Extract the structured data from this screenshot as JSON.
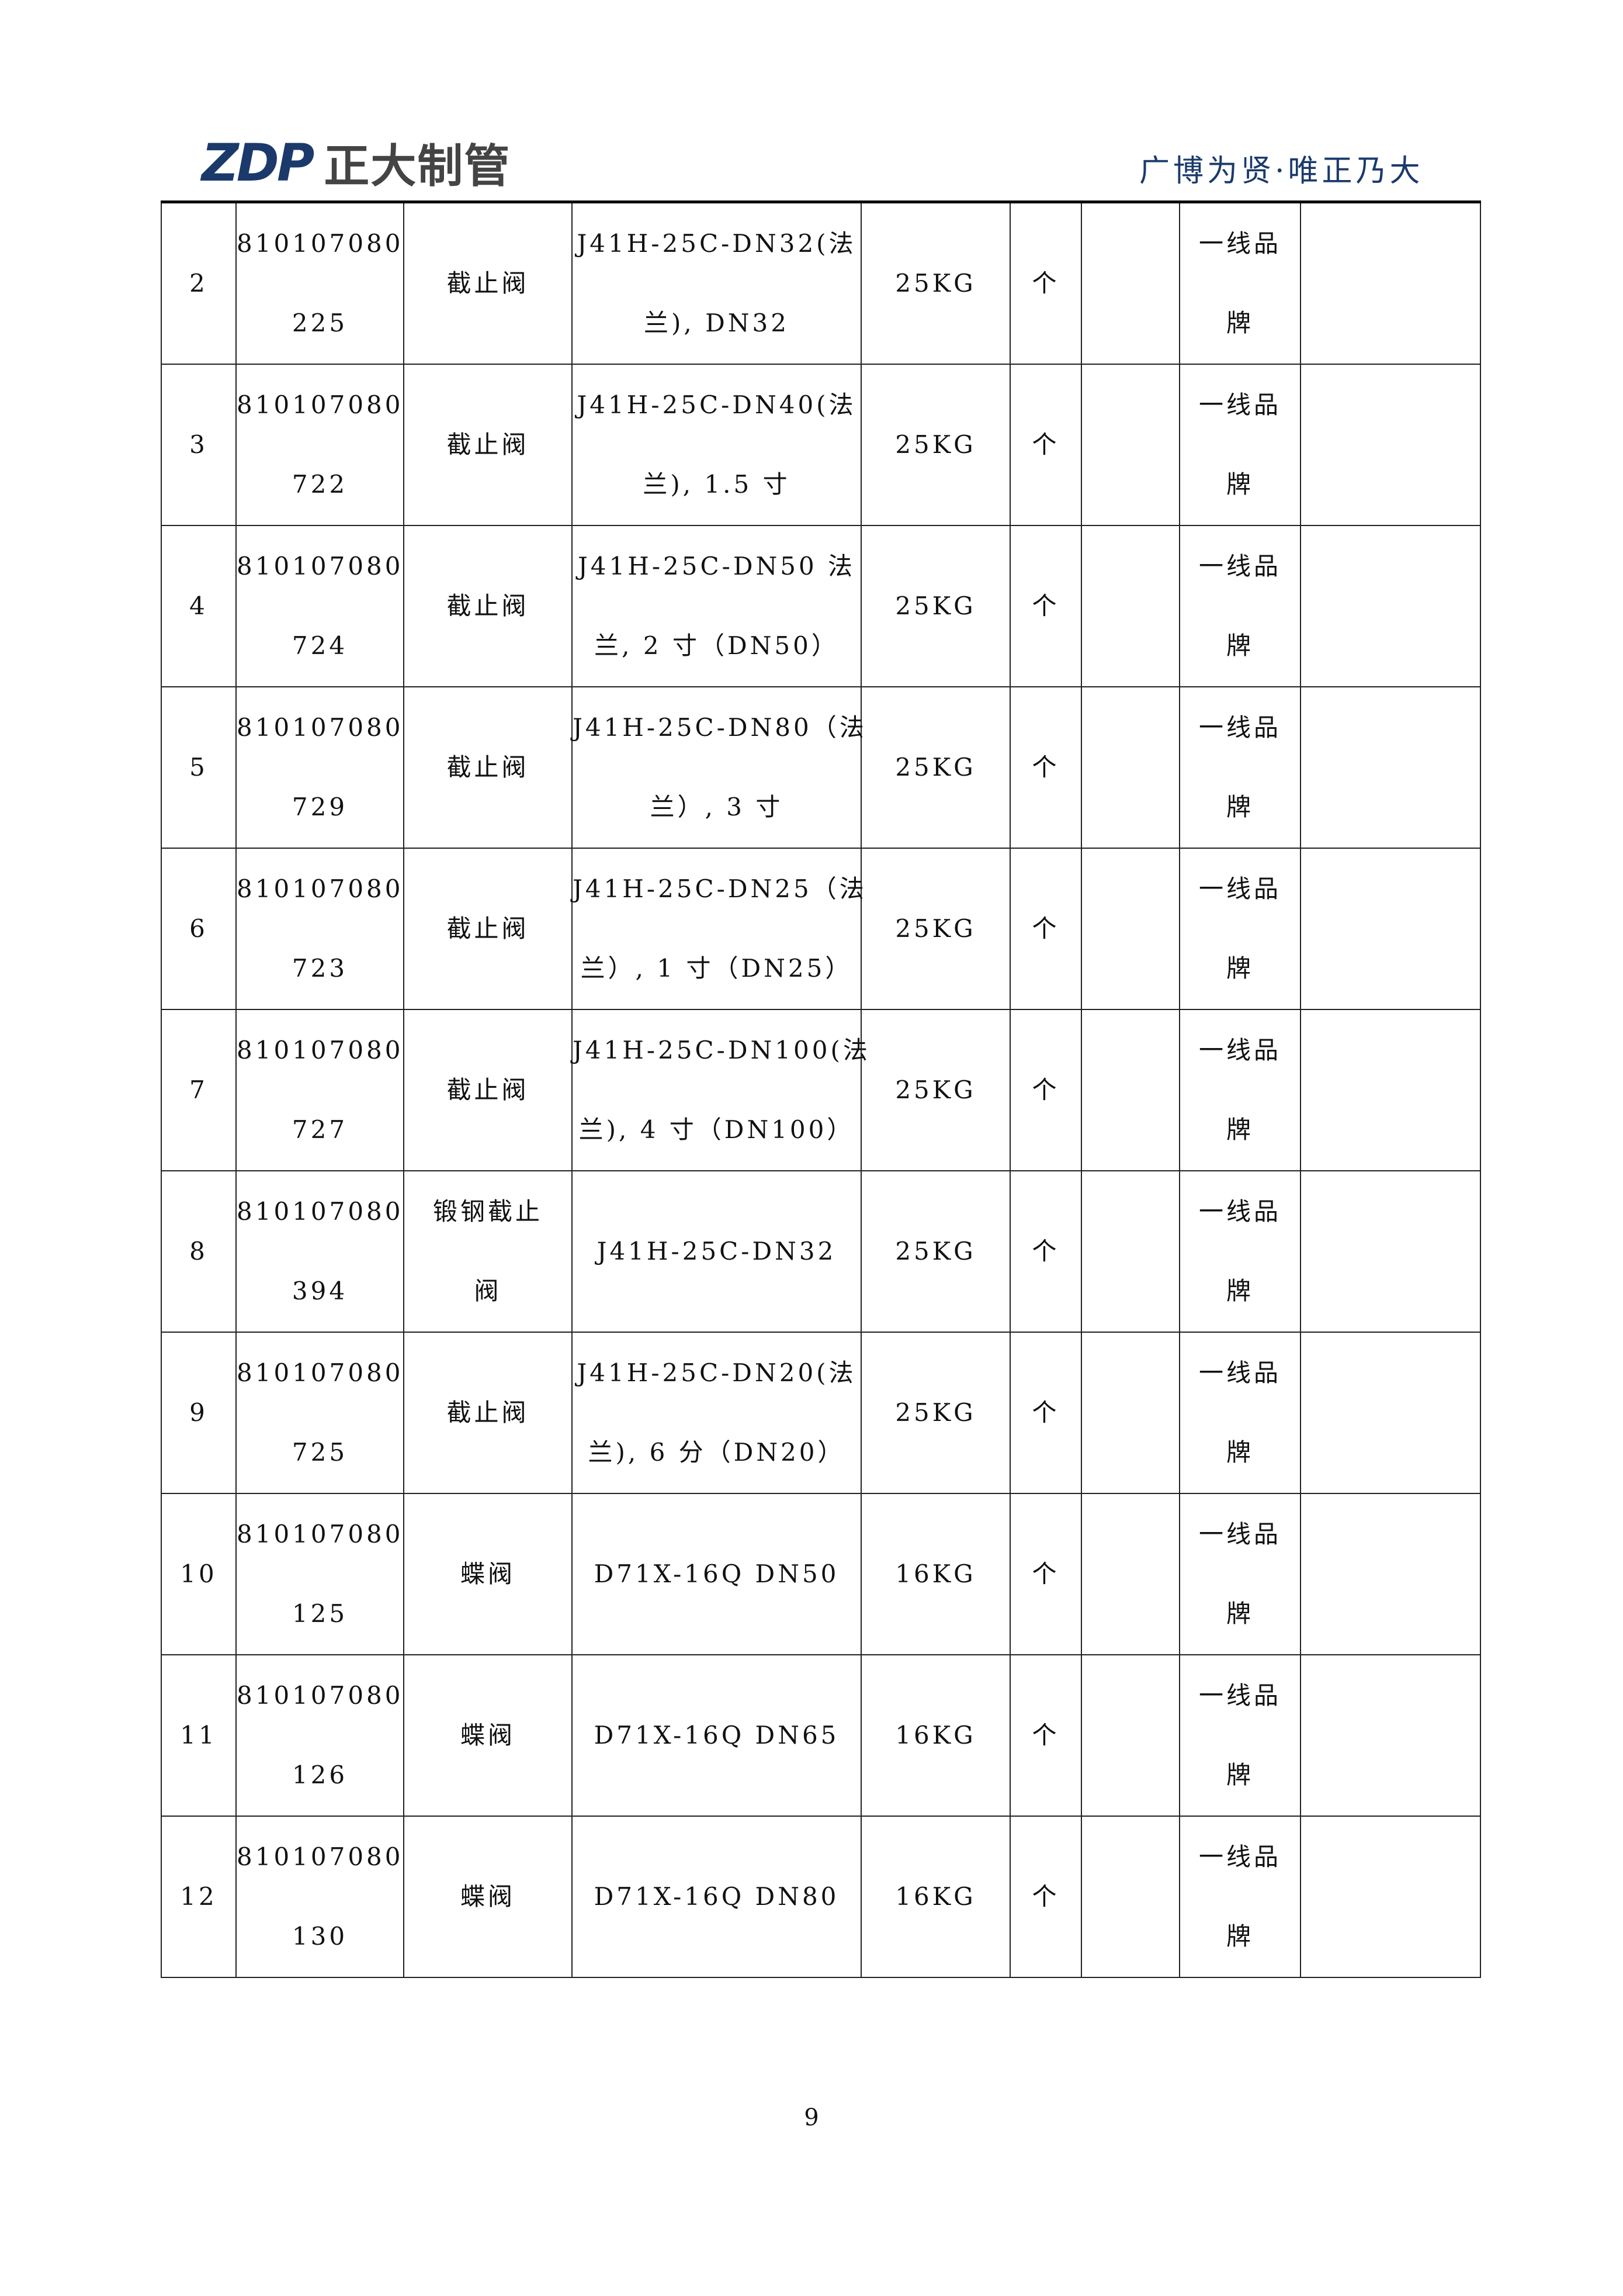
{
  "header": {
    "logo_mark": "ZDP",
    "logo_text": "正大制管",
    "slogan": "广博为贤·唯正乃大",
    "brand_color": "#1b3a6b"
  },
  "rows": [
    {
      "no": "2",
      "code": [
        "810107080",
        "225"
      ],
      "name": [
        "截止阀"
      ],
      "spec": [
        "J41H-25C-DN32(法",
        "兰), DN32"
      ],
      "pressure": "25KG",
      "unit": "个",
      "qty": "",
      "brand": [
        "一线品",
        "牌"
      ],
      "note": ""
    },
    {
      "no": "3",
      "code": [
        "810107080",
        "722"
      ],
      "name": [
        "截止阀"
      ],
      "spec": [
        "J41H-25C-DN40(法",
        "兰), 1.5 寸"
      ],
      "pressure": "25KG",
      "unit": "个",
      "qty": "",
      "brand": [
        "一线品",
        "牌"
      ],
      "note": ""
    },
    {
      "no": "4",
      "code": [
        "810107080",
        "724"
      ],
      "name": [
        "截止阀"
      ],
      "spec": [
        "J41H-25C-DN50 法",
        "兰, 2 寸（DN50）"
      ],
      "pressure": "25KG",
      "unit": "个",
      "qty": "",
      "brand": [
        "一线品",
        "牌"
      ],
      "note": ""
    },
    {
      "no": "5",
      "code": [
        "810107080",
        "729"
      ],
      "name": [
        "截止阀"
      ],
      "spec": [
        "J41H-25C-DN80（法",
        "兰）, 3 寸"
      ],
      "pressure": "25KG",
      "unit": "个",
      "qty": "",
      "brand": [
        "一线品",
        "牌"
      ],
      "note": ""
    },
    {
      "no": "6",
      "code": [
        "810107080",
        "723"
      ],
      "name": [
        "截止阀"
      ],
      "spec": [
        "J41H-25C-DN25（法",
        "兰）, 1 寸（DN25）"
      ],
      "pressure": "25KG",
      "unit": "个",
      "qty": "",
      "brand": [
        "一线品",
        "牌"
      ],
      "note": ""
    },
    {
      "no": "7",
      "code": [
        "810107080",
        "727"
      ],
      "name": [
        "截止阀"
      ],
      "spec": [
        "J41H-25C-DN100(法",
        "兰), 4 寸（DN100）"
      ],
      "pressure": "25KG",
      "unit": "个",
      "qty": "",
      "brand": [
        "一线品",
        "牌"
      ],
      "note": ""
    },
    {
      "no": "8",
      "code": [
        "810107080",
        "394"
      ],
      "name": [
        "锻钢截止",
        "阀"
      ],
      "spec": [
        "J41H-25C-DN32"
      ],
      "pressure": "25KG",
      "unit": "个",
      "qty": "",
      "brand": [
        "一线品",
        "牌"
      ],
      "note": ""
    },
    {
      "no": "9",
      "code": [
        "810107080",
        "725"
      ],
      "name": [
        "截止阀"
      ],
      "spec": [
        "J41H-25C-DN20(法",
        "兰), 6 分（DN20）"
      ],
      "pressure": "25KG",
      "unit": "个",
      "qty": "",
      "brand": [
        "一线品",
        "牌"
      ],
      "note": ""
    },
    {
      "no": "10",
      "code": [
        "810107080",
        "125"
      ],
      "name": [
        "蝶阀"
      ],
      "spec": [
        "D71X-16Q DN50"
      ],
      "pressure": "16KG",
      "unit": "个",
      "qty": "",
      "brand": [
        "一线品",
        "牌"
      ],
      "note": ""
    },
    {
      "no": "11",
      "code": [
        "810107080",
        "126"
      ],
      "name": [
        "蝶阀"
      ],
      "spec": [
        "D71X-16Q DN65"
      ],
      "pressure": "16KG",
      "unit": "个",
      "qty": "",
      "brand": [
        "一线品",
        "牌"
      ],
      "note": ""
    },
    {
      "no": "12",
      "code": [
        "810107080",
        "130"
      ],
      "name": [
        "蝶阀"
      ],
      "spec": [
        "D71X-16Q DN80"
      ],
      "pressure": "16KG",
      "unit": "个",
      "qty": "",
      "brand": [
        "一线品",
        "牌"
      ],
      "note": ""
    }
  ],
  "footer": {
    "page_number": "9"
  }
}
